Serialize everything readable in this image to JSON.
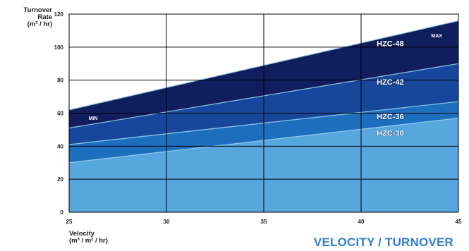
{
  "chart_data": {
    "type": "area",
    "title": "VELOCITY / TURNOVER",
    "ylabel": [
      "Turnover",
      "Rate",
      "(m³ / hr)"
    ],
    "xlabel": [
      "Velocity",
      "(m³ / m² / hr)"
    ],
    "xlim": [
      25,
      45
    ],
    "ylim": [
      0,
      120
    ],
    "xticks": [
      25,
      30,
      35,
      40,
      45
    ],
    "yticks": [
      0,
      20,
      40,
      60,
      80,
      100,
      120
    ],
    "grid": true,
    "x": [
      25,
      45
    ],
    "series": [
      {
        "name": "HZC-30",
        "values": [
          30,
          57
        ],
        "color": "#57a6de"
      },
      {
        "name": "HZC-36",
        "values": [
          41,
          67
        ],
        "color": "#1d6fbd"
      },
      {
        "name": "HZC-42",
        "values": [
          51,
          90
        ],
        "color": "#17479a"
      },
      {
        "name": "HZC-48",
        "values": [
          62,
          116
        ],
        "color": "#101e5e"
      }
    ],
    "annotations": [
      {
        "text": "MIN",
        "x": 26,
        "y": 56
      },
      {
        "text": "MAX",
        "x": 43.6,
        "y": 106
      }
    ]
  }
}
